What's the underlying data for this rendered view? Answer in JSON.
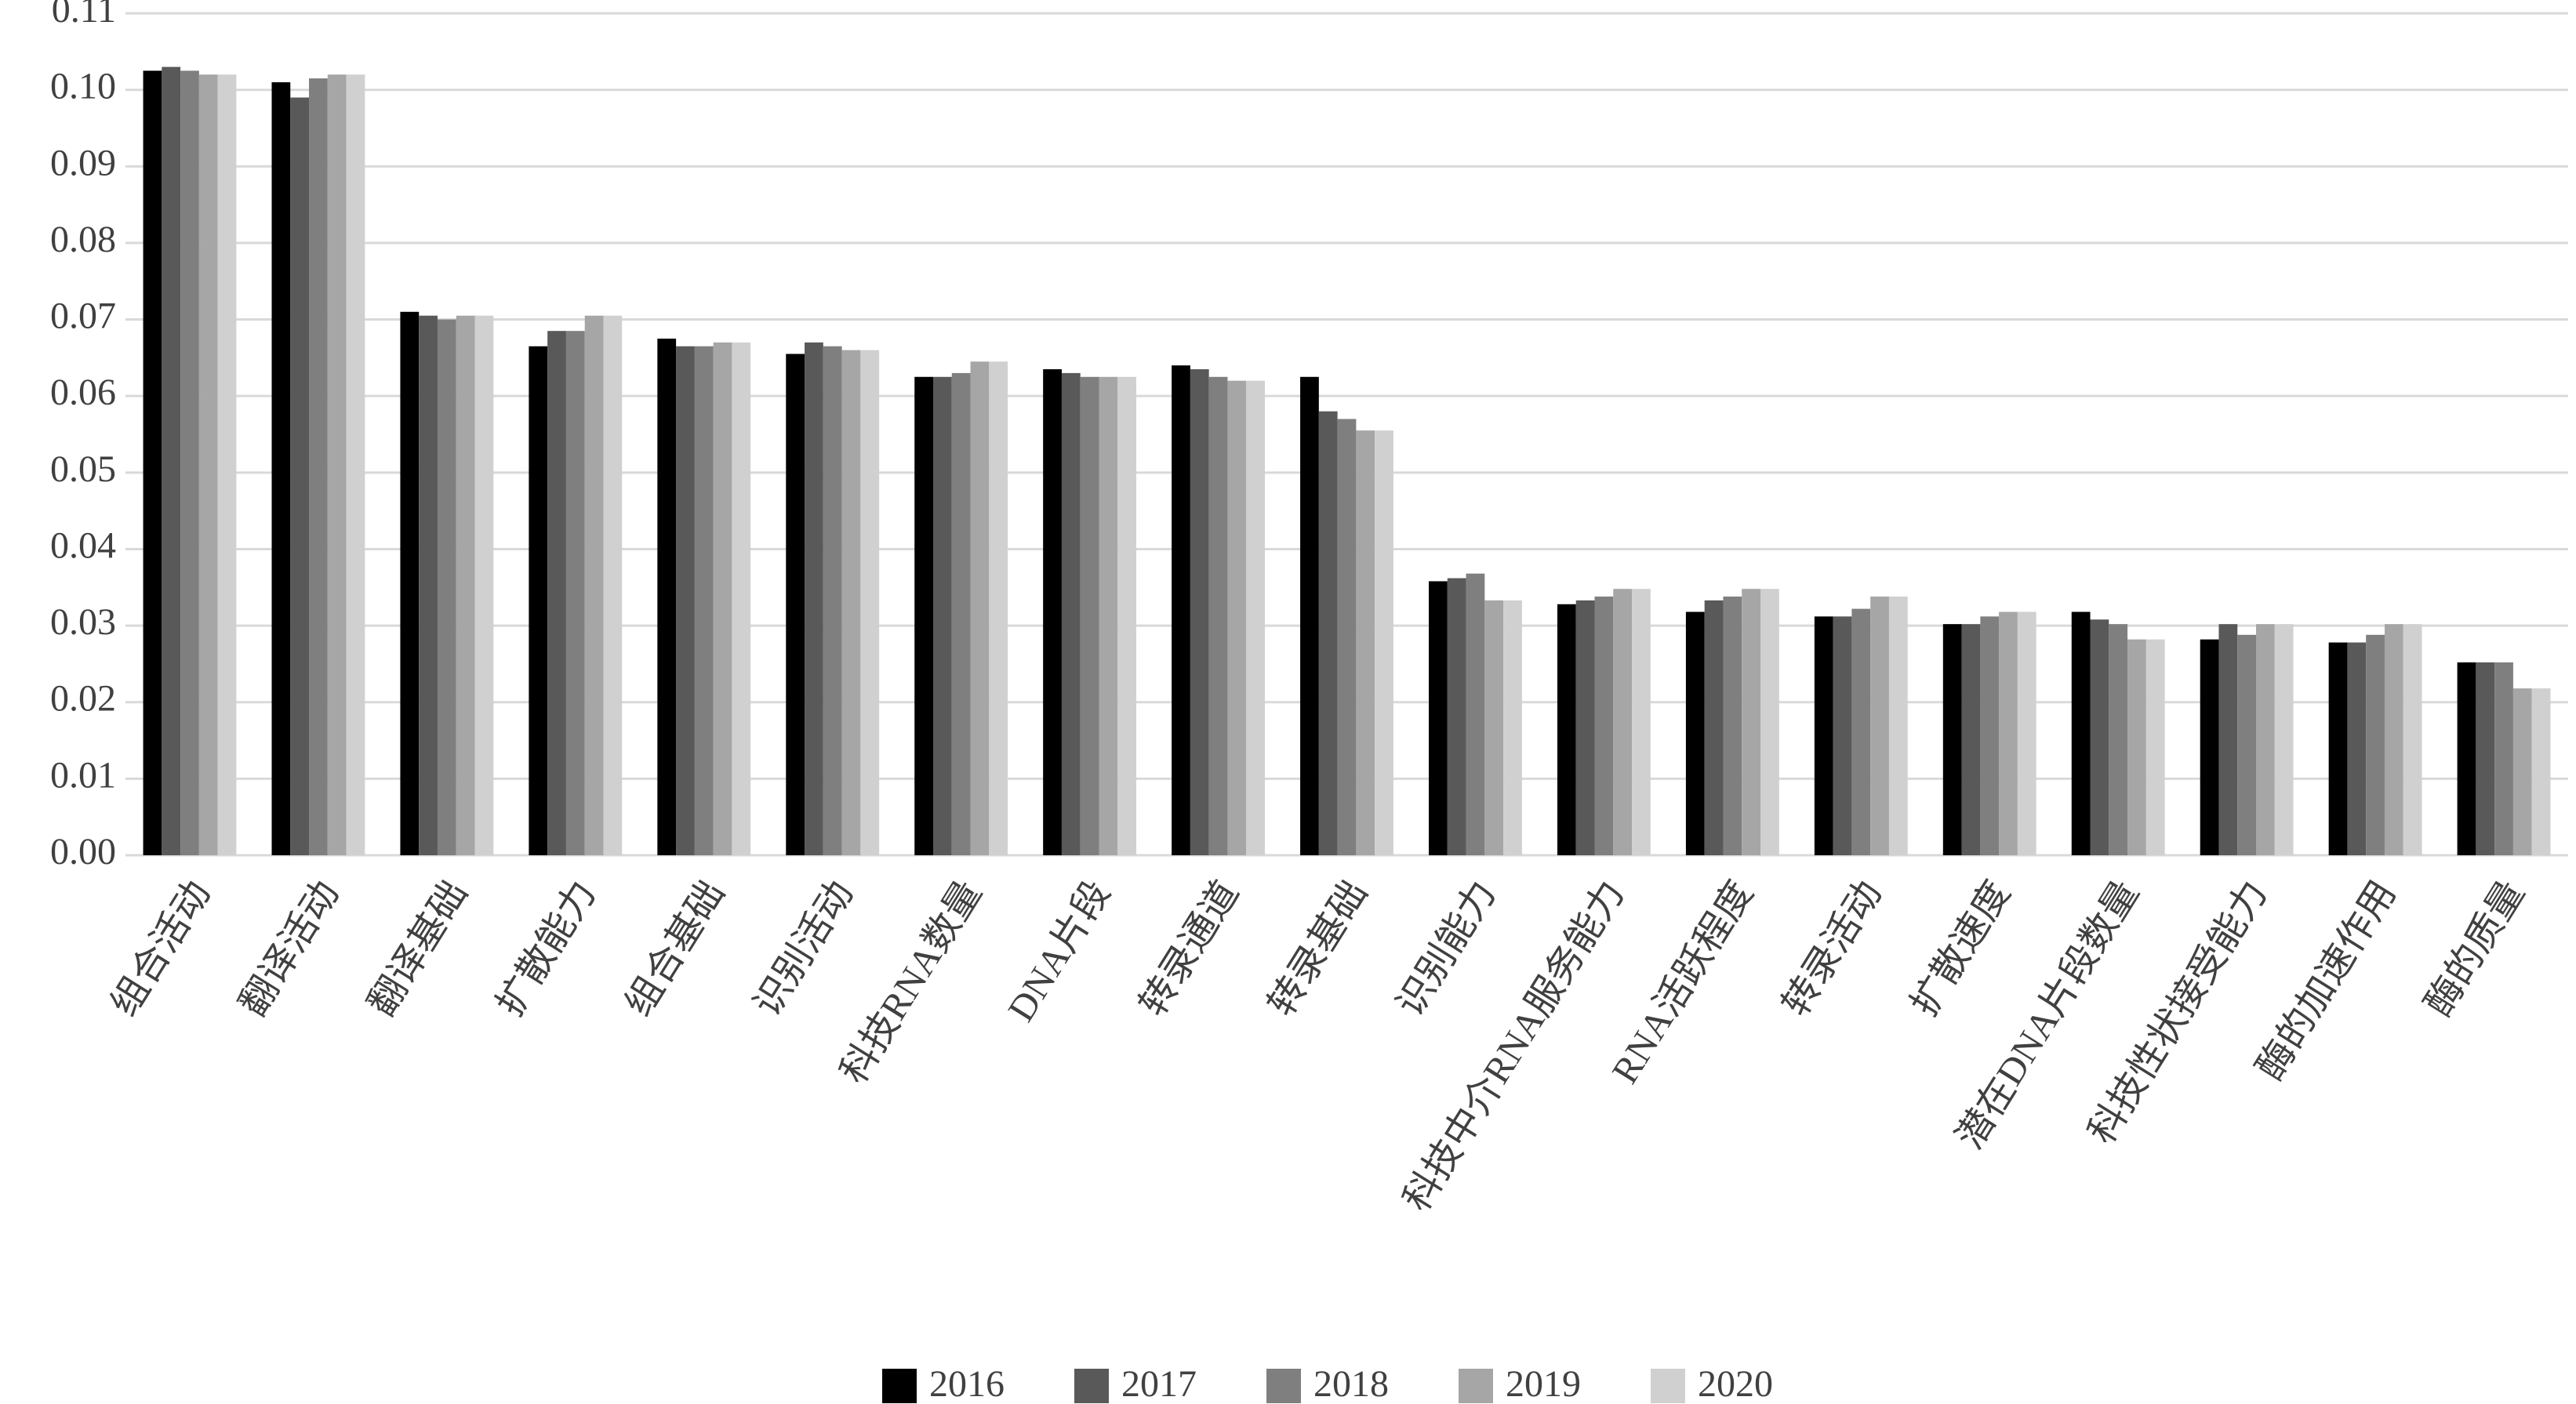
{
  "chart_data": {
    "type": "bar",
    "categories": [
      "组合活动",
      "翻译活动",
      "翻译基础",
      "扩散能力",
      "组合基础",
      "识别活动",
      "科技RNA数量",
      "DNA片段",
      "转录通道",
      "转录基础",
      "识别能力",
      "科技中介RNA服务能力",
      "RNA活跃程度",
      "转录活动",
      "扩散速度",
      "潜在DNA片段数量",
      "科技性状接受能力",
      "酶的加速作用",
      "酶的质量"
    ],
    "series": [
      {
        "name": "2016",
        "color": "#000000",
        "values": [
          0.1025,
          0.101,
          0.071,
          0.0665,
          0.0675,
          0.0655,
          0.0625,
          0.0635,
          0.064,
          0.0625,
          0.0358,
          0.0328,
          0.0318,
          0.0312,
          0.0302,
          0.0318,
          0.0282,
          0.0278,
          0.0252
        ]
      },
      {
        "name": "2017",
        "color": "#595959",
        "values": [
          0.103,
          0.099,
          0.0705,
          0.0685,
          0.0665,
          0.067,
          0.0625,
          0.063,
          0.0635,
          0.058,
          0.0362,
          0.0333,
          0.0333,
          0.0312,
          0.0302,
          0.0308,
          0.0302,
          0.0278,
          0.0252
        ]
      },
      {
        "name": "2018",
        "color": "#7f7f7f",
        "values": [
          0.1025,
          0.1015,
          0.07,
          0.0685,
          0.0665,
          0.0665,
          0.063,
          0.0625,
          0.0625,
          0.057,
          0.0368,
          0.0338,
          0.0338,
          0.0322,
          0.0312,
          0.0302,
          0.0288,
          0.0288,
          0.0252
        ]
      },
      {
        "name": "2019",
        "color": "#a6a6a6",
        "values": [
          0.102,
          0.102,
          0.0705,
          0.0705,
          0.067,
          0.066,
          0.0645,
          0.0625,
          0.062,
          0.0555,
          0.0333,
          0.0348,
          0.0348,
          0.0338,
          0.0318,
          0.0282,
          0.0302,
          0.0302,
          0.0218
        ]
      },
      {
        "name": "2020",
        "color": "#d0d0d0",
        "values": [
          0.102,
          0.102,
          0.0705,
          0.0705,
          0.067,
          0.066,
          0.0645,
          0.0625,
          0.062,
          0.0555,
          0.0333,
          0.0348,
          0.0348,
          0.0338,
          0.0318,
          0.0282,
          0.0302,
          0.0302,
          0.0218
        ]
      }
    ],
    "ylim": [
      0,
      0.11
    ],
    "yticks": [
      {
        "value": 0,
        "label": "0.00"
      },
      0.01,
      0.02,
      0.03,
      0.04,
      0.05,
      0.06,
      0.07,
      0.08,
      0.09,
      {
        "value": 0.1,
        "label": "0.10"
      },
      0.11
    ],
    "grid": true,
    "legend": "bottom"
  }
}
